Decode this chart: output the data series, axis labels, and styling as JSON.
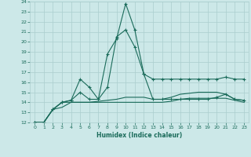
{
  "xlabel": "Humidex (Indice chaleur)",
  "bg_color": "#cce8e8",
  "grid_color": "#aacece",
  "line_color": "#1a6b5a",
  "xlim": [
    -0.5,
    23.5
  ],
  "ylim": [
    12,
    24
  ],
  "xticks": [
    0,
    1,
    2,
    3,
    4,
    5,
    6,
    7,
    8,
    9,
    10,
    11,
    12,
    13,
    14,
    15,
    16,
    17,
    18,
    19,
    20,
    21,
    22,
    23
  ],
  "yticks": [
    12,
    13,
    14,
    15,
    16,
    17,
    18,
    19,
    20,
    21,
    22,
    23,
    24
  ],
  "series1_x": [
    0,
    1,
    2,
    3,
    4,
    5,
    6,
    7,
    8,
    9,
    10,
    11,
    12,
    13,
    14,
    15,
    16,
    17,
    18,
    19,
    20,
    21,
    22,
    23
  ],
  "series1_y": [
    12,
    12,
    13.3,
    14.0,
    14.2,
    16.3,
    15.5,
    14.3,
    18.8,
    20.3,
    23.8,
    21.2,
    16.8,
    16.3,
    16.3,
    16.3,
    16.3,
    16.3,
    16.3,
    16.3,
    16.3,
    16.5,
    16.3,
    16.3
  ],
  "series2_x": [
    0,
    1,
    2,
    3,
    4,
    5,
    6,
    7,
    8,
    9,
    10,
    11,
    12,
    13,
    14,
    15,
    16,
    17,
    18,
    19,
    20,
    21,
    22,
    23
  ],
  "series2_y": [
    12,
    12,
    13.3,
    14.0,
    14.2,
    15.0,
    14.3,
    14.3,
    15.5,
    20.5,
    21.2,
    19.5,
    16.8,
    14.3,
    14.3,
    14.3,
    14.3,
    14.3,
    14.3,
    14.3,
    14.5,
    14.8,
    14.3,
    14.2
  ],
  "series3_x": [
    0,
    1,
    2,
    3,
    4,
    5,
    6,
    7,
    8,
    9,
    10,
    11,
    12,
    13,
    14,
    15,
    16,
    17,
    18,
    19,
    20,
    21,
    22,
    23
  ],
  "series3_y": [
    12,
    12,
    13.3,
    14.0,
    14.0,
    14.0,
    14.0,
    14.1,
    14.2,
    14.3,
    14.5,
    14.5,
    14.5,
    14.3,
    14.3,
    14.5,
    14.8,
    14.9,
    15.0,
    15.0,
    15.0,
    14.8,
    14.3,
    14.2
  ],
  "series4_x": [
    0,
    1,
    2,
    3,
    4,
    5,
    6,
    7,
    8,
    9,
    10,
    11,
    12,
    13,
    14,
    15,
    16,
    17,
    18,
    19,
    20,
    21,
    22,
    23
  ],
  "series4_y": [
    12,
    12,
    13.3,
    13.5,
    14.0,
    14.0,
    14.0,
    14.0,
    14.0,
    14.0,
    14.0,
    14.0,
    14.0,
    14.0,
    14.0,
    14.1,
    14.3,
    14.4,
    14.4,
    14.4,
    14.4,
    14.4,
    14.2,
    14.0
  ]
}
